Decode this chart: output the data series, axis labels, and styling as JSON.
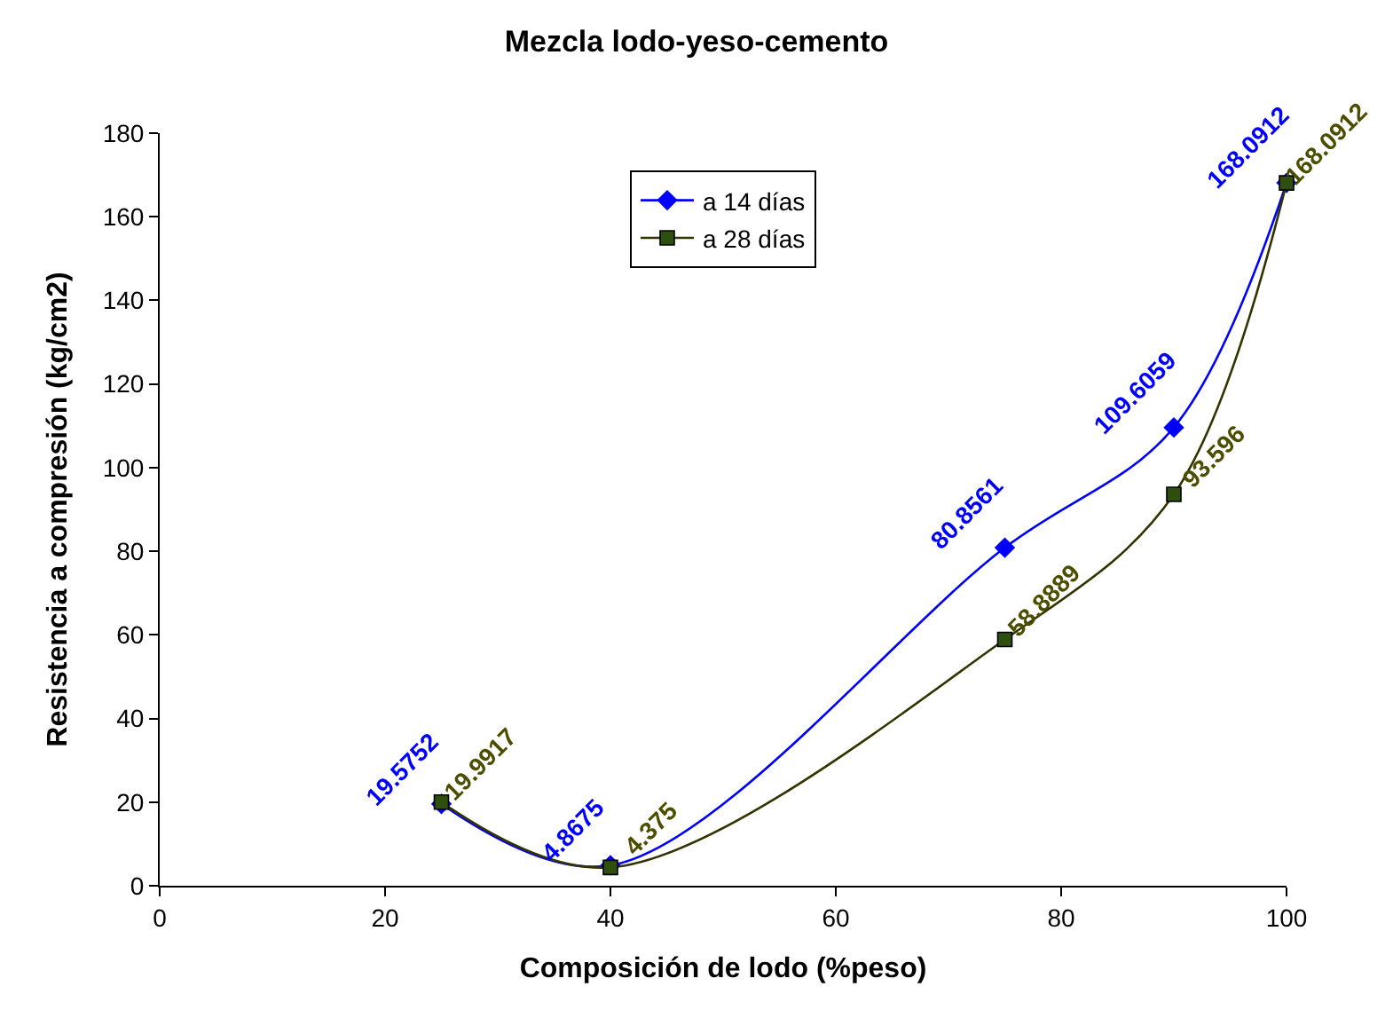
{
  "chart_data": {
    "type": "line",
    "title": "Mezcla lodo-yeso-cemento",
    "xlabel": "Composición de lodo (%peso)",
    "ylabel": "Resistencia a compresión (kg/cm2)",
    "x": [
      25,
      40,
      75,
      90,
      100
    ],
    "series": [
      {
        "name": "a 14 días",
        "color": "#0000ff",
        "marker": "diamond",
        "values": [
          19.5752,
          4.8675,
          80.8561,
          109.6059,
          168.0912
        ]
      },
      {
        "name": "a 28 días",
        "color": "#333300",
        "marker": "square",
        "values": [
          19.9917,
          4.375,
          58.8889,
          93.596,
          168.0912
        ]
      }
    ],
    "xlim": [
      0,
      100
    ],
    "xticks": [
      0,
      20,
      40,
      60,
      80,
      100
    ],
    "ylim": [
      0,
      180
    ],
    "yticks": [
      0,
      20,
      40,
      60,
      80,
      100,
      120,
      140,
      160,
      180
    ],
    "legend": "top",
    "data_labels": true,
    "line_style": "solid"
  }
}
